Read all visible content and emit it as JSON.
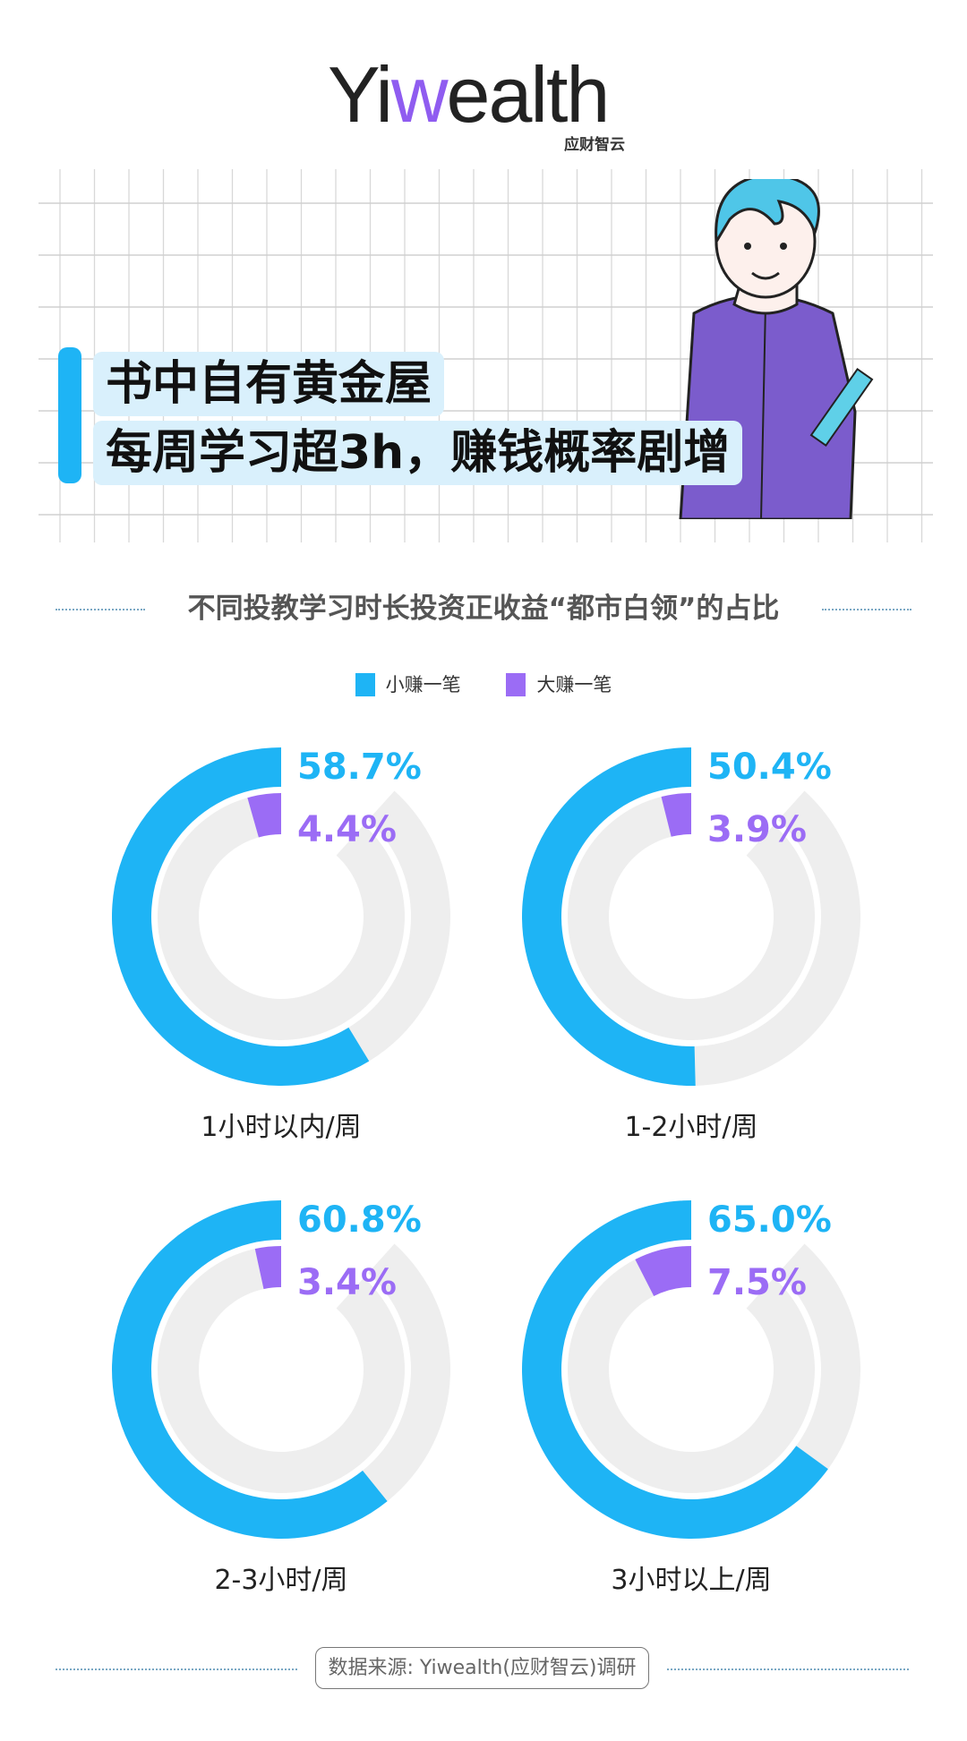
{
  "brand": {
    "logo_text_pre": "Yi",
    "logo_text_w": "w",
    "logo_text_post": "ealth",
    "logo_sub": "应财智云"
  },
  "header": {
    "title_line1": "书中自有黄金屋",
    "title_line2": "每周学习超3h，赚钱概率剧增"
  },
  "colors": {
    "small_gain": "#1eb4f5",
    "big_gain": "#9b6cf5",
    "track": "#eeeeee",
    "title_bg": "#d9f0fc"
  },
  "chart_data": {
    "type": "donut",
    "title": "不同投教学习时长投资正收益“都市白领”的占比",
    "legend": [
      "小赚一笔",
      "大赚一笔"
    ],
    "legend_placement": "top",
    "charts": [
      {
        "category": "1小时以内/周",
        "small_gain": 58.7,
        "big_gain": 4.4,
        "small_label": "58.7%",
        "big_label": "4.4%"
      },
      {
        "category": "1-2小时/周",
        "small_gain": 50.4,
        "big_gain": 3.9,
        "small_label": "50.4%",
        "big_label": "3.9%"
      },
      {
        "category": "2-3小时/周",
        "small_gain": 60.8,
        "big_gain": 3.4,
        "small_label": "60.8%",
        "big_label": "3.4%"
      },
      {
        "category": "3小时以上/周",
        "small_gain": 65.0,
        "big_gain": 7.5,
        "small_label": "65.0%",
        "big_label": "7.5%"
      }
    ]
  },
  "footer": {
    "source": "数据来源: Yiwealth(应财智云)调研"
  }
}
